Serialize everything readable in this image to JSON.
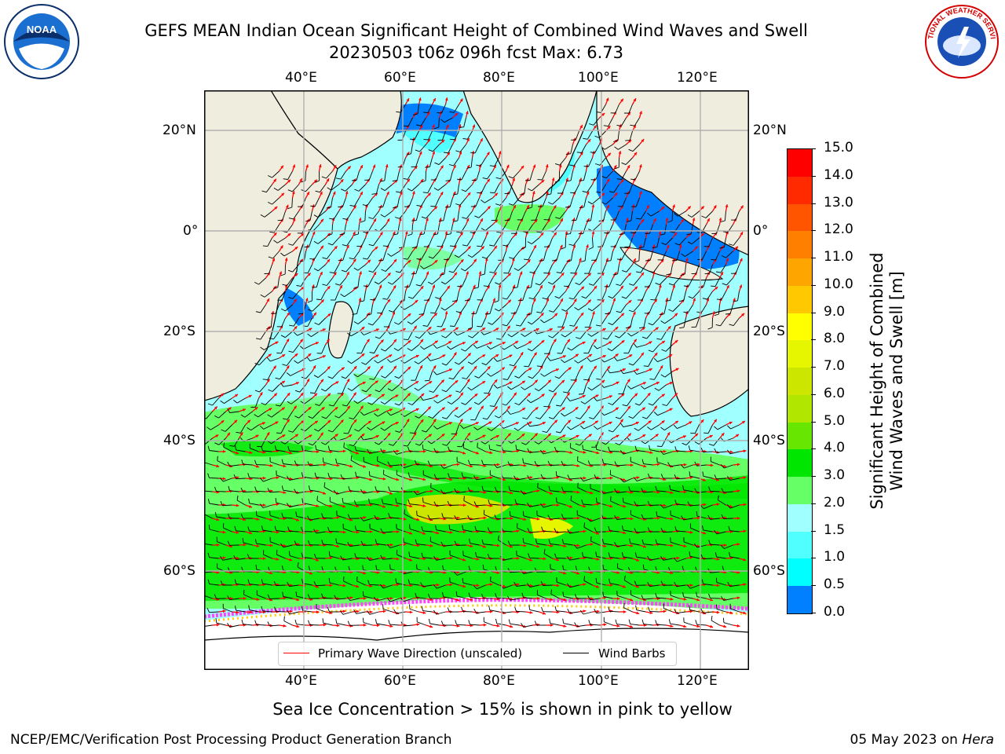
{
  "header": {
    "title_line1": "GEFS MEAN Indian Ocean Significant Height of Combined Wind Waves and Swell",
    "title_line2": "20230503 t06z 096h fcst   Max: 6.73"
  },
  "logos": {
    "left": "noaa-logo",
    "left_text": "NOAA",
    "right": "nws-logo",
    "right_text": "NATIONAL WEATHER SERVICE"
  },
  "map": {
    "top_lon_labels": [
      "40°E",
      "60°E",
      "80°E",
      "100°E",
      "120°E"
    ],
    "bottom_lon_labels": [
      "40°E",
      "60°E",
      "80°E",
      "100°E",
      "120°E"
    ],
    "left_lat_labels": [
      "20°N",
      "0°",
      "20°S",
      "40°S",
      "60°S"
    ],
    "right_lat_labels": [
      "20°N",
      "0°",
      "20°S",
      "40°S",
      "60°S"
    ],
    "colors": {
      "land": "#efedde",
      "sea_ice": "#ffffff",
      "wind_barb": "#000000",
      "wave_direction": "#ff0000"
    }
  },
  "legend": {
    "wave_direction": "Primary Wave Direction (unscaled)",
    "wind_barbs": "Wind Barbs"
  },
  "colorbar": {
    "label_line1": "Significant Height of Combined",
    "label_line2": "Wind Waves and Swell [m]",
    "ticks": [
      "15.0",
      "14.0",
      "13.0",
      "12.0",
      "11.0",
      "10.0",
      "9.0",
      "8.0",
      "7.0",
      "6.0",
      "5.0",
      "4.0",
      "3.0",
      "2.0",
      "1.5",
      "1.0",
      "0.5",
      "0.0"
    ],
    "colors": [
      "#ff0000",
      "#ff2a00",
      "#ff5500",
      "#ff8000",
      "#ffa500",
      "#ffc800",
      "#ffff00",
      "#e6f500",
      "#cde600",
      "#b0e600",
      "#66e600",
      "#00e600",
      "#66ff66",
      "#a0ffff",
      "#50ffff",
      "#00ffff",
      "#0080ff",
      "#0000ff"
    ]
  },
  "caption": "Sea Ice Concentration > 15% is shown in pink to yellow",
  "footer": {
    "left": "NCEP/EMC/Verification Post Processing Product Generation Branch",
    "right_date": "05 May 2023 on ",
    "right_host": "Hera"
  }
}
